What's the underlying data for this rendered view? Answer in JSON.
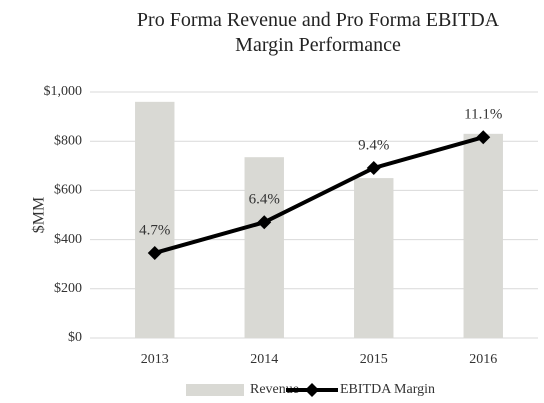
{
  "chart_data": {
    "type": "bar_line",
    "title": "Pro Forma Revenue and Pro Forma EBITDA Margin Performance",
    "y_label": "$MM",
    "categories": [
      "2013",
      "2014",
      "2015",
      "2016"
    ],
    "series": [
      {
        "name": "Revenue",
        "type": "bar",
        "color": "#d9d9d4",
        "values": [
          960,
          735,
          650,
          830
        ]
      },
      {
        "name": "EBITDA Margin",
        "type": "line",
        "color": "#000000",
        "axis": "y2",
        "values": [
          4.7,
          6.4,
          9.4,
          11.1
        ],
        "value_labels": [
          "4.7%",
          "6.4%",
          "9.4%",
          "11.1%"
        ]
      }
    ],
    "ylim": [
      0,
      1000
    ],
    "yticks": [
      {
        "value": 0,
        "label": "$0"
      },
      {
        "value": 200,
        "label": "$200"
      },
      {
        "value": 400,
        "label": "$400"
      },
      {
        "value": 600,
        "label": "$600"
      },
      {
        "value": 800,
        "label": "$800"
      },
      {
        "value": 1000,
        "label": "$1,000"
      }
    ],
    "y2lim": [
      0,
      13.6
    ],
    "grid": true,
    "legend": "bottom"
  }
}
